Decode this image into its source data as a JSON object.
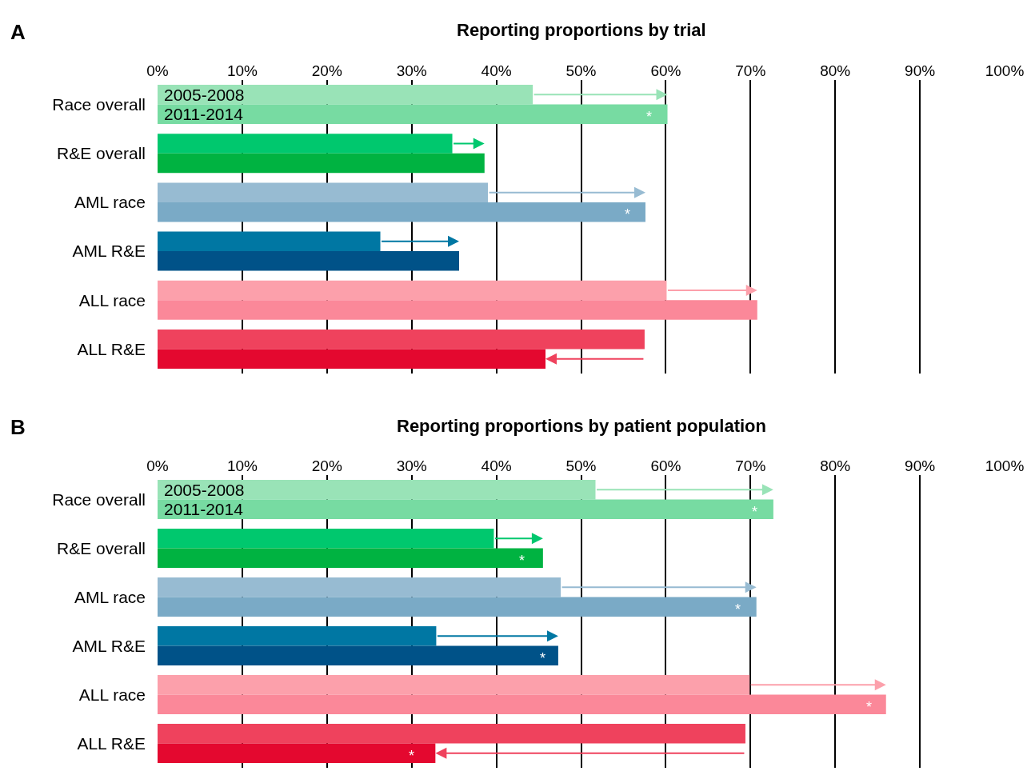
{
  "chart_data": [
    {
      "type": "bar",
      "orientation": "horizontal",
      "title": "Reporting proportions by trial",
      "categories": [
        "Race overall",
        "R&E overall",
        "AML race",
        "AML R&E",
        "ALL race",
        "ALL R&E"
      ],
      "series": [
        {
          "name": "2005-2008",
          "colors": [
            "#99e3b7",
            "#00c86e",
            "#97bbd2",
            "#0077a3",
            "#fca0ab",
            "#ef425d"
          ],
          "values": [
            44.3,
            34.8,
            39.0,
            26.3,
            60.1,
            57.5
          ]
        },
        {
          "name": "2011-2014",
          "colors": [
            "#77dba2",
            "#00b341",
            "#7aaac6",
            "#005288",
            "#fb8899",
            "#e4082f"
          ],
          "values": [
            60.2,
            38.6,
            57.6,
            35.6,
            70.8,
            45.8
          ]
        }
      ],
      "xlim": [
        0,
        100
      ],
      "xticks": [
        {
          "value": 0,
          "label": "0%"
        },
        {
          "value": 10,
          "label": "10%"
        },
        {
          "value": 20,
          "label": "20%"
        },
        {
          "value": 30,
          "label": "30%"
        },
        {
          "value": 40,
          "label": "40%"
        },
        {
          "value": 50,
          "label": "50%"
        },
        {
          "value": 60,
          "label": "60%"
        },
        {
          "value": 70,
          "label": "70%"
        },
        {
          "value": 80,
          "label": "80%"
        },
        {
          "value": 90,
          "label": "90%"
        },
        {
          "value": 100,
          "label": "100%"
        }
      ],
      "grid": "x",
      "annotations": [
        "A",
        {
          "text": "*",
          "x": 58,
          "y": "Race overall"
        },
        {
          "text": "*",
          "x": 55.5,
          "y": "AML race"
        }
      ]
    },
    {
      "type": "bar",
      "orientation": "horizontal",
      "title": "Reporting proportions by patient population",
      "categories": [
        "Race overall",
        "R&E overall",
        "AML race",
        "AML R&E",
        "ALL race",
        "ALL R&E"
      ],
      "series": [
        {
          "name": "2005-2008",
          "colors": [
            "#99e3b7",
            "#00c86e",
            "#97bbd2",
            "#0077a3",
            "#fca0ab",
            "#ef425d"
          ],
          "values": [
            51.7,
            39.7,
            47.6,
            32.9,
            69.9,
            69.4
          ]
        },
        {
          "name": "2011-2014",
          "colors": [
            "#77dba2",
            "#00b341",
            "#7aaac6",
            "#005288",
            "#fb8899",
            "#e4082f"
          ],
          "values": [
            72.7,
            45.5,
            70.7,
            47.3,
            86.0,
            32.8
          ]
        }
      ],
      "xlim": [
        0,
        100
      ],
      "xticks": [
        {
          "value": 0,
          "label": "0%"
        },
        {
          "value": 10,
          "label": "10%"
        },
        {
          "value": 20,
          "label": "20%"
        },
        {
          "value": 30,
          "label": "30%"
        },
        {
          "value": 40,
          "label": "40%"
        },
        {
          "value": 50,
          "label": "50%"
        },
        {
          "value": 60,
          "label": "60%"
        },
        {
          "value": 70,
          "label": "70%"
        },
        {
          "value": 80,
          "label": "80%"
        },
        {
          "value": 90,
          "label": "90%"
        },
        {
          "value": 100,
          "label": "100%"
        }
      ],
      "grid": "x",
      "annotations": [
        "B",
        {
          "text": "*",
          "x": 70.5,
          "y": "Race overall"
        },
        {
          "text": "*",
          "x": 43,
          "y": "R&E overall"
        },
        {
          "text": "*",
          "x": 68.5,
          "y": "AML race"
        },
        {
          "text": "*",
          "x": 45.5,
          "y": "AML R&E"
        },
        {
          "text": "*",
          "x": 84,
          "y": "ALL race"
        },
        {
          "text": "*",
          "x": 30,
          "y": "ALL R&E"
        }
      ]
    }
  ]
}
